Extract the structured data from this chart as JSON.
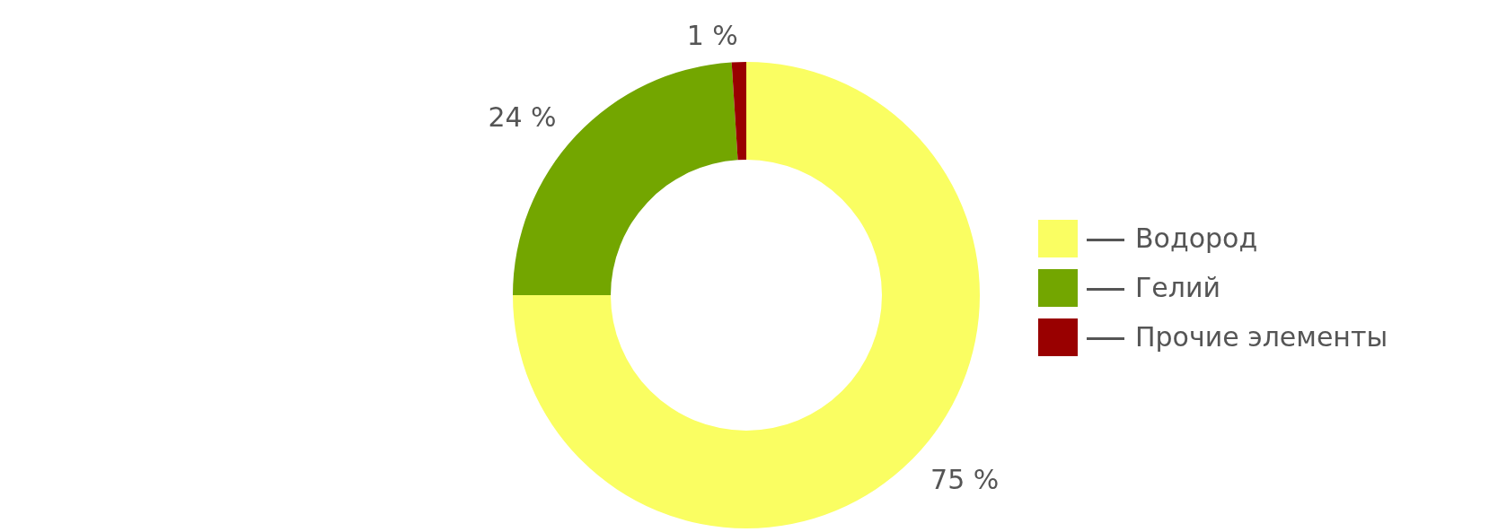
{
  "chart_data": {
    "type": "donut",
    "categories": [
      "Водород",
      "Гелий",
      "Прочие элементы"
    ],
    "values": [
      75,
      24,
      1
    ],
    "colors": [
      "#fafe62",
      "#73a600",
      "#990000"
    ],
    "value_labels": [
      "75 %",
      "24 %",
      "1 %"
    ],
    "legend": "right"
  }
}
